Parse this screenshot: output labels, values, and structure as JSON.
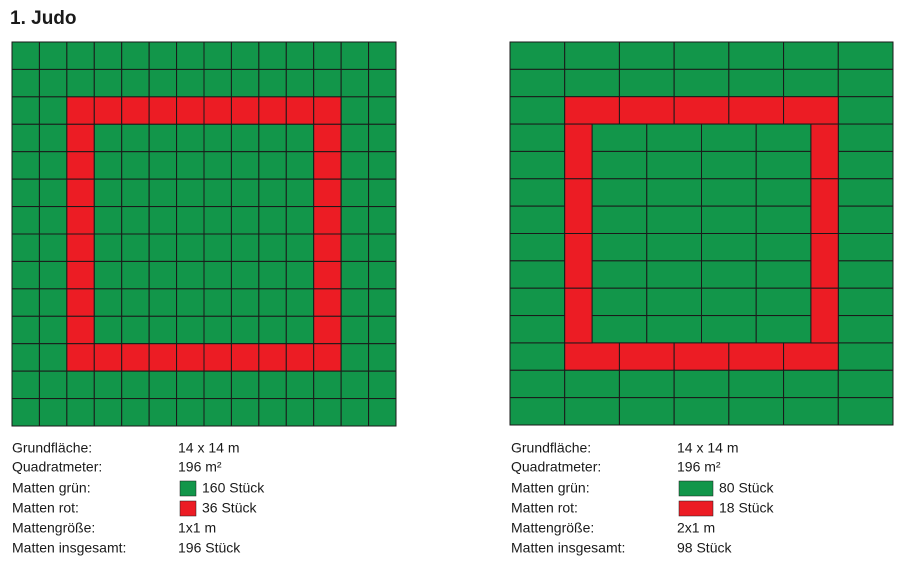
{
  "header": {
    "title": "1. Judo"
  },
  "layouts": [
    {
      "rows": [
        {
          "label": "Grundfläche:",
          "value": "14 x 14 m"
        },
        {
          "label": "Quadratmeter:",
          "value": "196 m²"
        },
        {
          "label": "Matten grün:",
          "value": "160 Stück"
        },
        {
          "label": "Matten rot:",
          "value": "36 Stück"
        },
        {
          "label": "Mattengröße:",
          "value": "1x1 m"
        },
        {
          "label": "Matten insgesamt:",
          "value": "196 Stück"
        }
      ]
    },
    {
      "rows": [
        {
          "label": "Grundfläche:",
          "value": "14 x 14 m"
        },
        {
          "label": "Quadratmeter:",
          "value": "196 m²"
        },
        {
          "label": "Matten grün:",
          "value": "80 Stück"
        },
        {
          "label": "Matten rot:",
          "value": "18 Stück"
        },
        {
          "label": "Mattengröße:",
          "value": "2x1 m"
        },
        {
          "label": "Matten insgesamt:",
          "value": "98 Stück"
        }
      ]
    }
  ]
}
